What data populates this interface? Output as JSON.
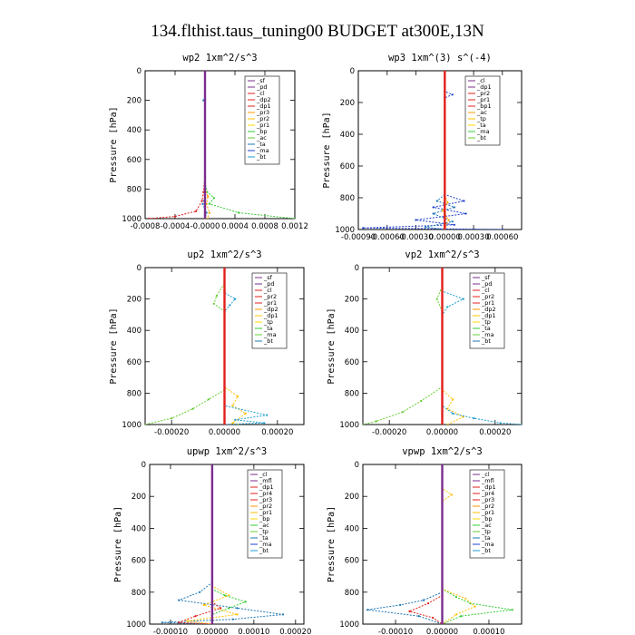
{
  "figure_title": "134.flthist.taus_tuning00  BUDGET at300E,13N",
  "chart_data": [
    {
      "type": "line",
      "title": "wp2  1xm^2/s^3",
      "ylabel": "Pressure [hPa]",
      "xlim": [
        -0.0008,
        0.0012
      ],
      "ylim": [
        0,
        1000
      ],
      "y_inverted": true,
      "x_ticks": [
        "-0.0008",
        "-0.0004",
        "-0.0000",
        "0.0004",
        "0.0008",
        "0.0012"
      ],
      "x_tick_values": [
        -0.0008,
        -0.0004,
        0,
        0.0004,
        0.0008,
        0.0012
      ],
      "y_ticks": [
        0,
        200,
        400,
        600,
        800,
        1000
      ],
      "legend": [
        "_sf",
        "_pd",
        "_cl",
        "_dp2",
        "_dp1",
        "_pr3",
        "_pr2",
        "_pr1",
        "_bp",
        "_ac",
        "_ta",
        "_ma",
        "_bt"
      ],
      "series": [
        {
          "name": "_dp1",
          "color": "#e0201b",
          "points": [
            [
              0,
              0
            ],
            [
              0,
              700
            ],
            [
              -2e-05,
              820
            ],
            [
              -4e-05,
              880
            ],
            [
              -0.00012,
              950
            ],
            [
              -0.0004,
              985
            ],
            [
              -0.00075,
              1000
            ]
          ]
        },
        {
          "name": "_bp",
          "color": "#33cc33",
          "points": [
            [
              0,
              0
            ],
            [
              0,
              760
            ],
            [
              3e-05,
              820
            ],
            [
              0.00012,
              860
            ],
            [
              6e-05,
              900
            ],
            [
              0.00045,
              960
            ],
            [
              0.0012,
              1000
            ]
          ]
        },
        {
          "name": "_pr1",
          "color": "#ffa500",
          "points": [
            [
              0,
              0
            ],
            [
              0,
              800
            ],
            [
              4e-05,
              850
            ],
            [
              2e-05,
              900
            ],
            [
              6e-05,
              960
            ],
            [
              3e-05,
              1000
            ]
          ]
        },
        {
          "name": "_ac",
          "color": "#1f77b4",
          "points": [
            [
              0,
              0
            ],
            [
              0,
              180
            ],
            [
              -2e-05,
              200
            ],
            [
              0,
              220
            ],
            [
              0,
              850
            ],
            [
              -3e-05,
              900
            ],
            [
              2e-05,
              960
            ],
            [
              0,
              1000
            ]
          ]
        },
        {
          "name": "_cl",
          "color": "#7b2d8e",
          "points": [
            [
              0,
              0
            ],
            [
              0,
              1000
            ]
          ]
        }
      ]
    },
    {
      "type": "line",
      "title": "wp3  1xm^(3) s^(-4)",
      "ylabel": "Pressure [hPa]",
      "xlim": [
        -0.0009,
        0.0008
      ],
      "ylim": [
        0,
        1000
      ],
      "y_inverted": true,
      "x_ticks": [
        "-0.00090",
        "-0.00060",
        "-0.00030",
        "0.00000",
        "0.00030",
        "0.00060"
      ],
      "x_tick_values": [
        -0.0009,
        -0.0006,
        -0.0003,
        0,
        0.0003,
        0.0006
      ],
      "y_ticks": [
        0,
        200,
        400,
        600,
        800,
        1000
      ],
      "legend": [
        "_cl",
        "_dp1",
        "_pr2",
        "_pr1",
        "_bp1",
        "_ac",
        "_tp",
        "_ta",
        "_ma",
        "_bt"
      ],
      "series": [
        {
          "name": "_tp",
          "color": "#1f3fd0",
          "points": [
            [
              0,
              0
            ],
            [
              0,
              130
            ],
            [
              8e-05,
              150
            ],
            [
              0,
              170
            ],
            [
              0,
              780
            ],
            [
              0.0002,
              820
            ],
            [
              -0.00012,
              860
            ],
            [
              0.00022,
              900
            ],
            [
              -0.0003,
              940
            ],
            [
              0.0001,
              970
            ],
            [
              -0.00085,
              990
            ],
            [
              0.0006,
              1000
            ]
          ]
        },
        {
          "name": "_ac",
          "color": "#1f77b4",
          "points": [
            [
              0,
              0
            ],
            [
              0,
              780
            ],
            [
              -8e-05,
              820
            ],
            [
              0.0001,
              860
            ],
            [
              -0.00012,
              900
            ],
            [
              8e-05,
              950
            ],
            [
              -0.0002,
              985
            ],
            [
              0,
              1000
            ]
          ]
        },
        {
          "name": "_pr1",
          "color": "#ffa500",
          "points": [
            [
              0,
              0
            ],
            [
              0,
              780
            ],
            [
              3e-05,
              830
            ],
            [
              -2e-05,
              880
            ],
            [
              4e-05,
              940
            ],
            [
              0,
              1000
            ]
          ]
        },
        {
          "name": "_dp1",
          "color": "#e0201b",
          "points": [
            [
              0,
              0
            ],
            [
              0,
              1000
            ]
          ]
        }
      ]
    },
    {
      "type": "line",
      "title": "up2  1xm^2/s^3",
      "ylabel": "Pressure [hPa]",
      "xlim": [
        -0.0003,
        0.0003
      ],
      "ylim": [
        0,
        1000
      ],
      "y_inverted": true,
      "x_ticks": [
        "-0.00020",
        "0.00000",
        "0.00020"
      ],
      "x_tick_values": [
        -0.0002,
        0,
        0.0002
      ],
      "y_ticks": [
        0,
        200,
        400,
        600,
        800,
        1000
      ],
      "legend": [
        "_sf",
        "_pd",
        "_cl",
        "_pr2",
        "_pr1",
        "_dp2",
        "_dp1",
        "_tp",
        "_ta",
        "_ma",
        "_bt"
      ],
      "series": [
        {
          "name": "_dp1",
          "color": "#66cc33",
          "points": [
            [
              0,
              0
            ],
            [
              0,
              100
            ],
            [
              -3e-05,
              180
            ],
            [
              -4e-05,
              230
            ],
            [
              0,
              280
            ],
            [
              0,
              780
            ],
            [
              -6e-05,
              840
            ],
            [
              -0.00012,
              900
            ],
            [
              -0.0002,
              960
            ],
            [
              -0.0003,
              1000
            ]
          ]
        },
        {
          "name": "_pr1",
          "color": "#ffc000",
          "points": [
            [
              0,
              0
            ],
            [
              0,
              760
            ],
            [
              5e-05,
              820
            ],
            [
              3e-05,
              880
            ],
            [
              8e-05,
              930
            ],
            [
              3e-05,
              990
            ],
            [
              5e-05,
              1000
            ]
          ]
        },
        {
          "name": "_tp",
          "color": "#1f9fd0",
          "points": [
            [
              0,
              0
            ],
            [
              0,
              160
            ],
            [
              4e-05,
              200
            ],
            [
              2e-05,
              240
            ],
            [
              0,
              280
            ],
            [
              0,
              880
            ],
            [
              0.00016,
              940
            ],
            [
              4e-05,
              970
            ],
            [
              0.00015,
              990
            ],
            [
              0,
              1000
            ]
          ]
        },
        {
          "name": "_cl",
          "color": "#e0201b",
          "points": [
            [
              0,
              0
            ],
            [
              0,
              1000
            ]
          ]
        }
      ]
    },
    {
      "type": "line",
      "title": "vp2  1xm^2/s^3",
      "ylabel": "Pressure [hPa]",
      "xlim": [
        -0.0003,
        0.0003
      ],
      "ylim": [
        0,
        1000
      ],
      "y_inverted": true,
      "x_ticks": [
        "-0.00020",
        "0.00000",
        "0.00020"
      ],
      "x_tick_values": [
        -0.0002,
        0,
        0.0002
      ],
      "y_ticks": [
        0,
        200,
        400,
        600,
        800,
        1000
      ],
      "legend": [
        "_sf",
        "_pd",
        "_cl",
        "_pr2",
        "_pr1",
        "_dp2",
        "_dp1",
        "_tp",
        "_ta",
        "_ma",
        "_bt"
      ],
      "series": [
        {
          "name": "_dp1",
          "color": "#66cc33",
          "points": [
            [
              0,
              0
            ],
            [
              0,
              120
            ],
            [
              -2e-05,
              200
            ],
            [
              0,
              280
            ],
            [
              0,
              760
            ],
            [
              -8e-05,
              850
            ],
            [
              -0.00015,
              920
            ],
            [
              -0.00025,
              980
            ],
            [
              -0.0003,
              1000
            ]
          ]
        },
        {
          "name": "_pr1",
          "color": "#ffc000",
          "points": [
            [
              0,
              0
            ],
            [
              0,
              780
            ],
            [
              4e-05,
              840
            ],
            [
              2e-05,
              900
            ],
            [
              8e-05,
              950
            ],
            [
              2e-05,
              1000
            ]
          ]
        },
        {
          "name": "_tp",
          "color": "#1f9fd0",
          "points": [
            [
              0,
              0
            ],
            [
              0,
              150
            ],
            [
              8e-05,
              200
            ],
            [
              2e-05,
              250
            ],
            [
              0,
              300
            ],
            [
              0,
              880
            ],
            [
              4e-05,
              930
            ],
            [
              0.00012,
              960
            ],
            [
              0.00022,
              990
            ],
            [
              0.0003,
              1000
            ]
          ]
        },
        {
          "name": "_cl",
          "color": "#e0201b",
          "points": [
            [
              0,
              0
            ],
            [
              0,
              1000
            ]
          ]
        }
      ]
    },
    {
      "type": "line",
      "title": "upwp  1xm^2/s^3",
      "ylabel": "Pressure [hPa]",
      "xlim": [
        -0.00015,
        0.00022
      ],
      "ylim": [
        0,
        1000
      ],
      "y_inverted": true,
      "x_ticks": [
        "-0.00010",
        "0.00000",
        "0.00010",
        "0.00020"
      ],
      "x_tick_values": [
        -0.0001,
        0,
        0.0001,
        0.0002
      ],
      "y_ticks": [
        0,
        200,
        400,
        600,
        800,
        1000
      ],
      "legend": [
        "_cl",
        "_mfl",
        "_dp1",
        "_pr4",
        "_pr3",
        "_pr2",
        "_pr1",
        "_bp",
        "_ac",
        "_tp",
        "_ta",
        "_ma",
        "_bt"
      ],
      "series": [
        {
          "name": "_ac",
          "color": "#1f77b4",
          "points": [
            [
              0,
              0
            ],
            [
              0,
              740
            ],
            [
              -3e-05,
              800
            ],
            [
              -8e-05,
              850
            ],
            [
              6e-05,
              900
            ],
            [
              0.00017,
              940
            ],
            [
              5e-05,
              970
            ],
            [
              -0.00012,
              990
            ],
            [
              0,
              1000
            ]
          ]
        },
        {
          "name": "_bp",
          "color": "#33cc33",
          "points": [
            [
              0,
              0
            ],
            [
              0,
              780
            ],
            [
              3e-05,
              820
            ],
            [
              8e-05,
              860
            ],
            [
              4e-05,
              900
            ],
            [
              0,
              940
            ],
            [
              0,
              1000
            ]
          ]
        },
        {
          "name": "_pr1",
          "color": "#ffc000",
          "points": [
            [
              0,
              0
            ],
            [
              0,
              760
            ],
            [
              4e-05,
              820
            ],
            [
              -2e-05,
              880
            ],
            [
              6e-05,
              940
            ],
            [
              -6e-05,
              980
            ],
            [
              0,
              1000
            ]
          ]
        },
        {
          "name": "_dp1",
          "color": "#e0201b",
          "points": [
            [
              0,
              0
            ],
            [
              0,
              860
            ],
            [
              2e-05,
              900
            ],
            [
              -4e-05,
              950
            ],
            [
              -8e-05,
              990
            ],
            [
              0,
              1000
            ]
          ]
        },
        {
          "name": "_cl",
          "color": "#7b2d8e",
          "points": [
            [
              0,
              0
            ],
            [
              0,
              1000
            ]
          ]
        }
      ]
    },
    {
      "type": "line",
      "title": "vpwp  1xm^2/s^3",
      "ylabel": "Pressure [hPa]",
      "xlim": [
        -0.00017,
        0.00017
      ],
      "ylim": [
        0,
        1000
      ],
      "y_inverted": true,
      "x_ticks": [
        "-0.00010",
        "0.00000",
        "0.00010"
      ],
      "x_tick_values": [
        -0.0001,
        0,
        0.0001
      ],
      "y_ticks": [
        0,
        200,
        400,
        600,
        800,
        1000
      ],
      "legend": [
        "_cl",
        "_mfl",
        "_dp1",
        "_pr4",
        "_pr3",
        "_pr2",
        "_pr1",
        "_bp",
        "_ac",
        "_tp",
        "_ta",
        "_ma",
        "_bt"
      ],
      "series": [
        {
          "name": "_bp",
          "color": "#33cc33",
          "points": [
            [
              0,
              0
            ],
            [
              0,
              780
            ],
            [
              3e-05,
              830
            ],
            [
              6e-05,
              870
            ],
            [
              0.00015,
              910
            ],
            [
              4e-05,
              950
            ],
            [
              0,
              1000
            ]
          ]
        },
        {
          "name": "_ac",
          "color": "#1f77b4",
          "points": [
            [
              0,
              0
            ],
            [
              0,
              800
            ],
            [
              -4e-05,
              850
            ],
            [
              -9e-05,
              880
            ],
            [
              -0.00016,
              910
            ],
            [
              -5e-05,
              950
            ],
            [
              0,
              1000
            ]
          ]
        },
        {
          "name": "_pr1",
          "color": "#ffc000",
          "points": [
            [
              0,
              0
            ],
            [
              0,
              150
            ],
            [
              2e-05,
              190
            ],
            [
              0,
              230
            ],
            [
              0,
              780
            ],
            [
              5e-05,
              840
            ],
            [
              7e-05,
              890
            ],
            [
              3e-05,
              940
            ],
            [
              0,
              1000
            ]
          ]
        },
        {
          "name": "_dp1",
          "color": "#e0201b",
          "points": [
            [
              0,
              0
            ],
            [
              0,
              820
            ],
            [
              -3e-05,
              870
            ],
            [
              -7e-05,
              920
            ],
            [
              -2e-05,
              960
            ],
            [
              0,
              1000
            ]
          ]
        },
        {
          "name": "_cl",
          "color": "#7b2d8e",
          "points": [
            [
              0,
              0
            ],
            [
              0,
              1000
            ]
          ]
        }
      ]
    }
  ]
}
